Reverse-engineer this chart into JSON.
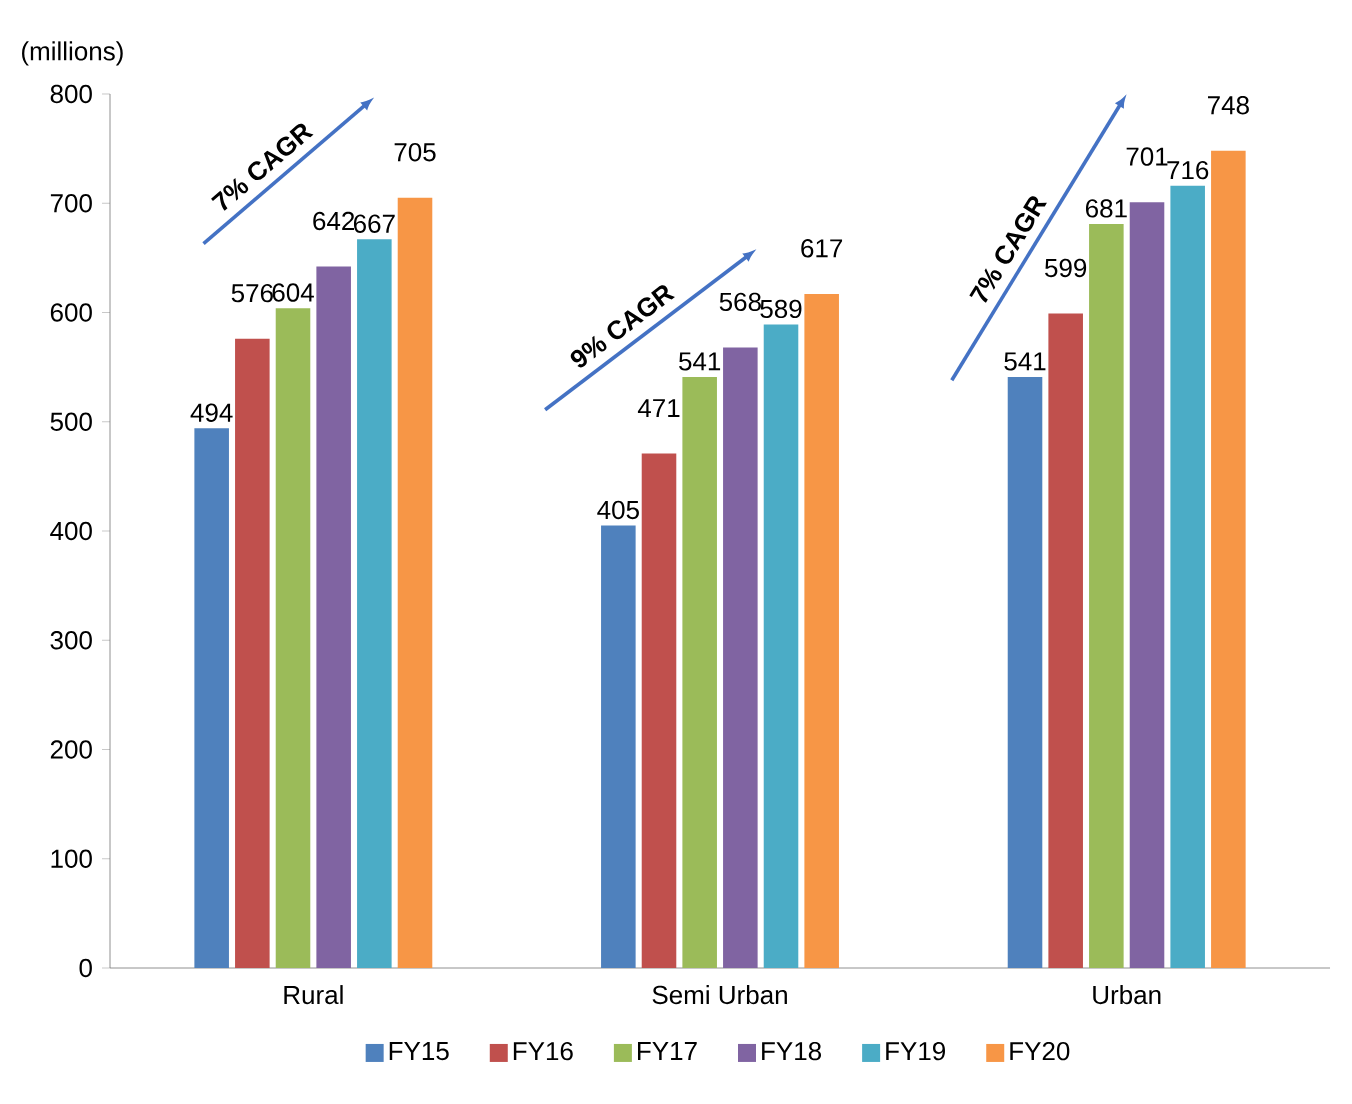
{
  "chart_data": {
    "type": "bar",
    "ylabel": "(millions)",
    "categories": [
      "Rural",
      "Semi Urban",
      "Urban"
    ],
    "series": [
      {
        "name": "FY15",
        "color": "#4f81bd",
        "values": [
          494,
          405,
          541
        ]
      },
      {
        "name": "FY16",
        "color": "#c0504d",
        "values": [
          576,
          471,
          599
        ]
      },
      {
        "name": "FY17",
        "color": "#9bbb59",
        "values": [
          604,
          541,
          681
        ]
      },
      {
        "name": "FY18",
        "color": "#8064a2",
        "values": [
          642,
          568,
          701
        ]
      },
      {
        "name": "FY19",
        "color": "#4bacc6",
        "values": [
          667,
          589,
          716
        ]
      },
      {
        "name": "FY20",
        "color": "#f79646",
        "values": [
          705,
          617,
          748
        ]
      }
    ],
    "ylim": [
      0,
      800
    ],
    "yticks": [
      0,
      100,
      200,
      300,
      400,
      500,
      600,
      700,
      800
    ],
    "data_labels": true,
    "legend": "bottom",
    "annotations": [
      "7% CAGR",
      "9% CAGR",
      "7% CAGR"
    ]
  }
}
